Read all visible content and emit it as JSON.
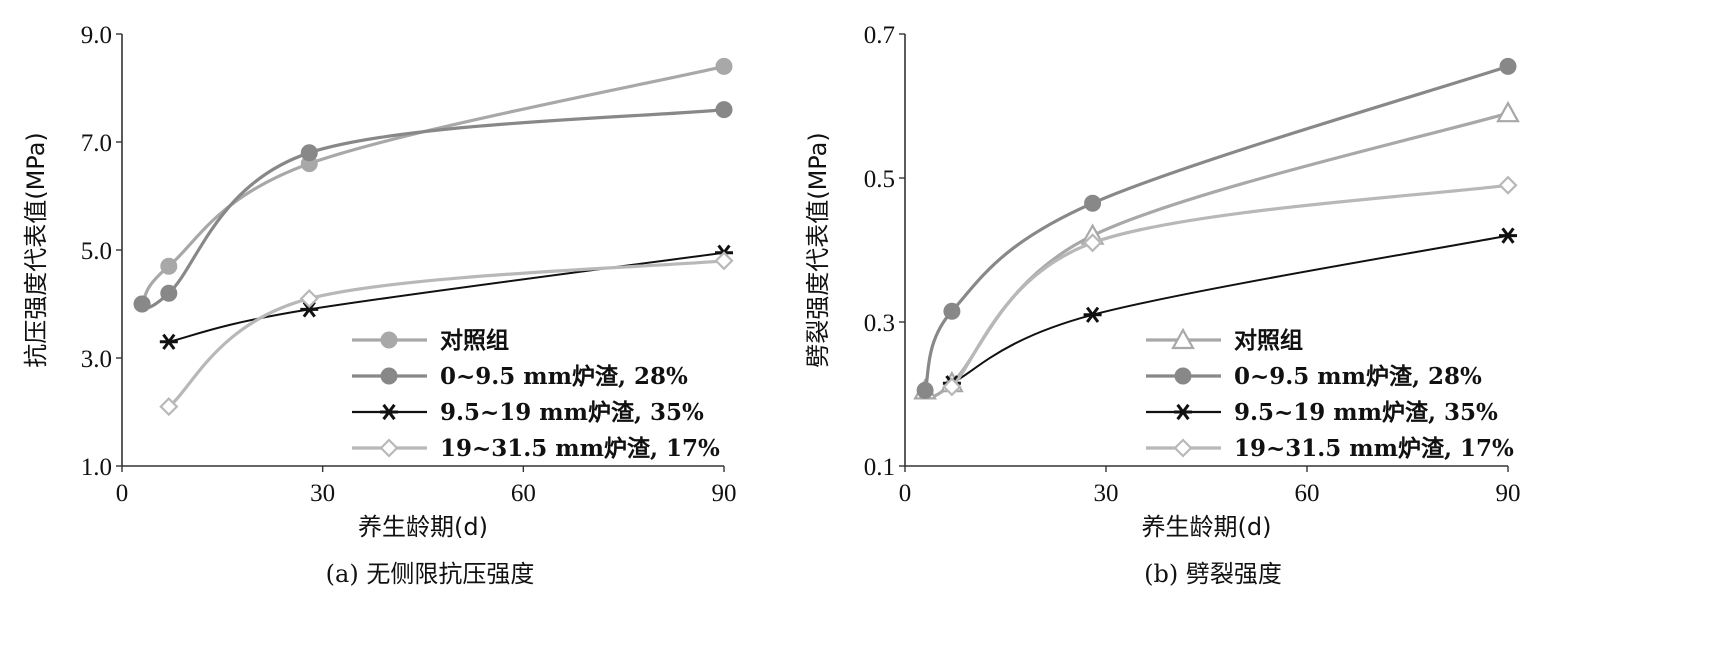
{
  "colors": {
    "control": "#a8a8a8",
    "slag_0_9_5": "#888888",
    "slag_9_5_19": "#111111",
    "slag_19_31_5": "#b8b8b8"
  },
  "chart_data": [
    {
      "type": "line",
      "caption": "(a) 无侧限抗压强度",
      "xlabel": "养生龄期(d)",
      "ylabel": "抗压强度代表值(MPa)",
      "xlim": [
        0,
        90
      ],
      "ylim": [
        1.0,
        9.0
      ],
      "xticks": [
        "0",
        "30",
        "60",
        "90"
      ],
      "yticks": [
        "1.0",
        "3.0",
        "5.0",
        "7.0",
        "9.0"
      ],
      "legend_position": "lower-right",
      "series": [
        {
          "name": "对照组",
          "marker": "circle",
          "color_key": "control",
          "x": [
            3,
            7,
            28,
            90
          ],
          "y": [
            4.0,
            4.7,
            6.6,
            8.4
          ]
        },
        {
          "name": "0~9.5 mm炉渣, 28%",
          "marker": "circle",
          "color_key": "slag_0_9_5",
          "x": [
            3,
            7,
            28,
            90
          ],
          "y": [
            4.0,
            4.2,
            6.8,
            7.6
          ]
        },
        {
          "name": "9.5~19 mm炉渣, 35%",
          "marker": "star",
          "color_key": "slag_9_5_19",
          "x": [
            7,
            28,
            90
          ],
          "y": [
            3.3,
            3.9,
            4.95
          ]
        },
        {
          "name": "19~31.5 mm炉渣, 17%",
          "marker": "diamond",
          "color_key": "slag_19_31_5",
          "x": [
            7,
            28,
            90
          ],
          "y": [
            2.1,
            4.1,
            4.8
          ]
        }
      ]
    },
    {
      "type": "line",
      "caption": "(b) 劈裂强度",
      "xlabel": "养生龄期(d)",
      "ylabel": "劈裂强度代表值(MPa)",
      "xlim": [
        0,
        90
      ],
      "ylim": [
        0.1,
        0.7
      ],
      "xticks": [
        "0",
        "30",
        "60",
        "90"
      ],
      "yticks": [
        "0.1",
        "0.3",
        "0.5",
        "0.7"
      ],
      "legend_position": "lower-right",
      "series": [
        {
          "name": "对照组",
          "marker": "triangle",
          "color_key": "control",
          "x": [
            3,
            7,
            28,
            90
          ],
          "y": [
            0.205,
            0.215,
            0.42,
            0.59
          ]
        },
        {
          "name": "0~9.5 mm炉渣, 28%",
          "marker": "circle",
          "color_key": "slag_0_9_5",
          "x": [
            3,
            7,
            28,
            90
          ],
          "y": [
            0.205,
            0.315,
            0.465,
            0.655
          ]
        },
        {
          "name": "9.5~19 mm炉渣, 35%",
          "marker": "star",
          "color_key": "slag_9_5_19",
          "x": [
            7,
            28,
            90
          ],
          "y": [
            0.215,
            0.31,
            0.42
          ]
        },
        {
          "name": "19~31.5 mm炉渣, 17%",
          "marker": "diamond",
          "color_key": "slag_19_31_5",
          "x": [
            7,
            28,
            90
          ],
          "y": [
            0.21,
            0.41,
            0.49
          ]
        }
      ]
    }
  ]
}
